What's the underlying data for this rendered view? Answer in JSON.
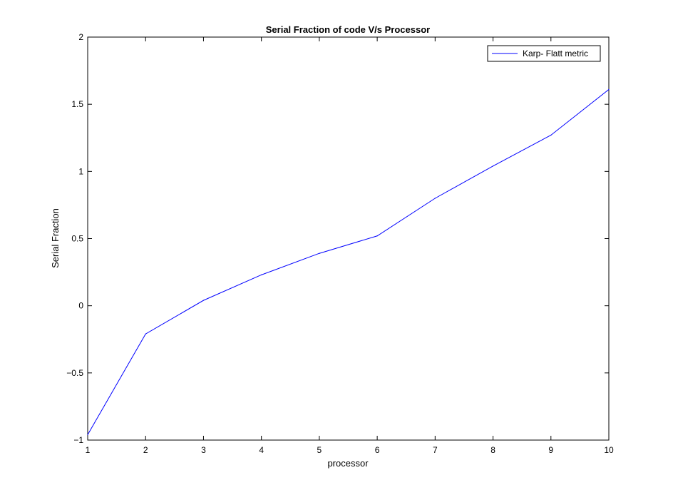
{
  "chart_data": {
    "type": "line",
    "title": "Serial Fraction of code V/s Processor",
    "xlabel": "processor",
    "ylabel": "Serial Fraction",
    "xlim": [
      1,
      10
    ],
    "ylim": [
      -1,
      2
    ],
    "xticks": [
      "1",
      "2",
      "3",
      "4",
      "5",
      "6",
      "7",
      "8",
      "9",
      "10"
    ],
    "yticks": [
      "-1",
      "-0.5",
      "0",
      "0.5",
      "1",
      "1.5",
      "2"
    ],
    "grid": false,
    "legend_position": "top-right",
    "series": [
      {
        "name": "Karp- Flatt metric",
        "color": "#0000ff",
        "x": [
          1,
          2,
          3,
          4,
          5,
          6,
          7,
          8,
          9,
          10
        ],
        "y": [
          -0.96,
          -0.21,
          0.04,
          0.23,
          0.39,
          0.52,
          0.8,
          1.04,
          1.27,
          1.61
        ]
      }
    ]
  }
}
